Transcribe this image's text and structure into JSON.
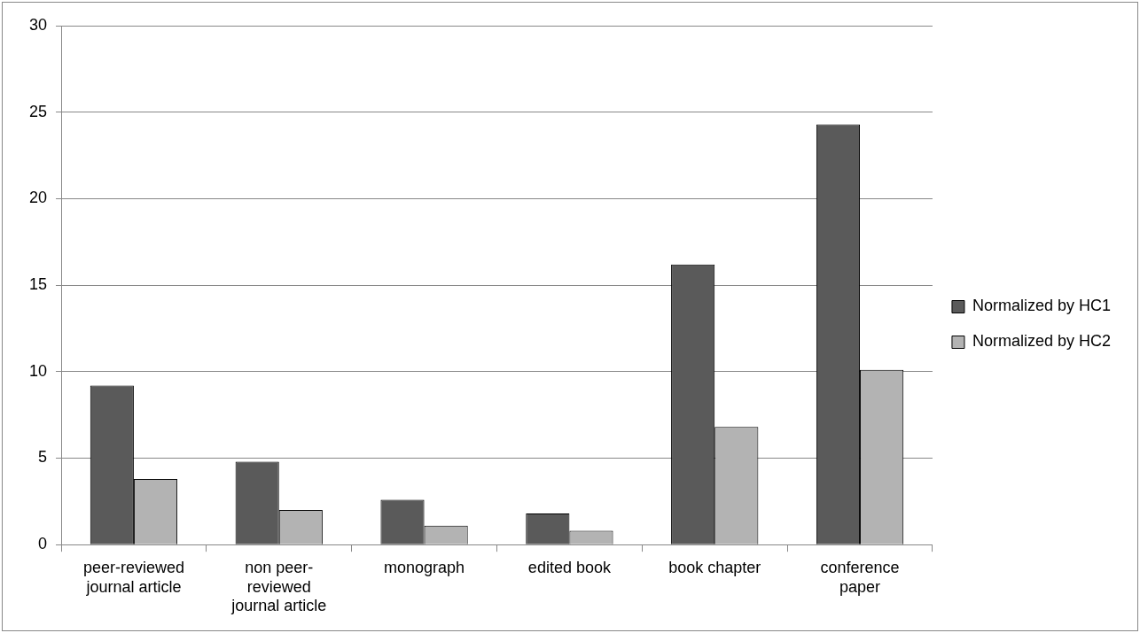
{
  "chart_data": {
    "type": "bar",
    "categories": [
      "peer-reviewed journal article",
      "non peer-reviewed journal article",
      "monograph",
      "edited book",
      "book chapter",
      "conference paper"
    ],
    "series": [
      {
        "name": "Normalized by HC1",
        "color": "#5a5a5a",
        "values": [
          9.2,
          4.8,
          2.6,
          1.8,
          16.2,
          24.3
        ]
      },
      {
        "name": "Normalized by HC2",
        "color": "#b3b3b3",
        "values": [
          3.8,
          2.0,
          1.1,
          0.8,
          6.8,
          10.1
        ]
      }
    ],
    "ylim": [
      0,
      30
    ],
    "yticks": [
      0,
      5,
      10,
      15,
      20,
      25,
      30
    ],
    "grid": "y",
    "legend": "right"
  }
}
